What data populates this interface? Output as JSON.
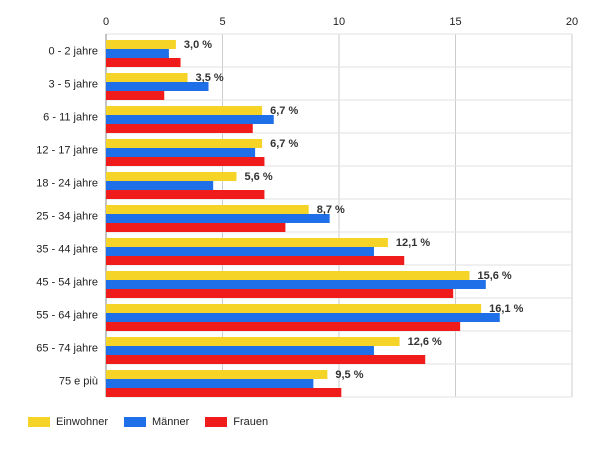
{
  "chart_data": {
    "type": "bar",
    "orientation": "horizontal",
    "categories": [
      "0 - 2 jahre",
      "3 - 5 jahre",
      "6 - 11 jahre",
      "12 - 17 jahre",
      "18 - 24 jahre",
      "25 - 34 jahre",
      "35 - 44 jahre",
      "45 - 54 jahre",
      "55 - 64 jahre",
      "65 - 74 jahre",
      "75 e più"
    ],
    "xlim": [
      0,
      20
    ],
    "xticks": [
      0,
      5,
      10,
      15,
      20
    ],
    "grid": true,
    "legend_position": "bottom-left",
    "series": [
      {
        "name": "Einwohner",
        "color": "#f5d327",
        "values": [
          3.0,
          3.5,
          6.7,
          6.7,
          5.6,
          8.7,
          12.1,
          15.6,
          16.1,
          12.6,
          9.5
        ],
        "labels": [
          "3,0 %",
          "3,5 %",
          "6,7 %",
          "6,7 %",
          "5,6 %",
          "8,7 %",
          "12,1 %",
          "15,6 %",
          "16,1 %",
          "12,6 %",
          "9,5 %"
        ]
      },
      {
        "name": "Männer",
        "color": "#1f6fe8",
        "values": [
          2.7,
          4.4,
          7.2,
          6.4,
          4.6,
          9.6,
          11.5,
          16.3,
          16.9,
          11.5,
          8.9
        ]
      },
      {
        "name": "Frauen",
        "color": "#f01c1c",
        "values": [
          3.2,
          2.5,
          6.3,
          6.8,
          6.8,
          7.7,
          12.8,
          14.9,
          15.2,
          13.7,
          10.1
        ]
      }
    ]
  }
}
